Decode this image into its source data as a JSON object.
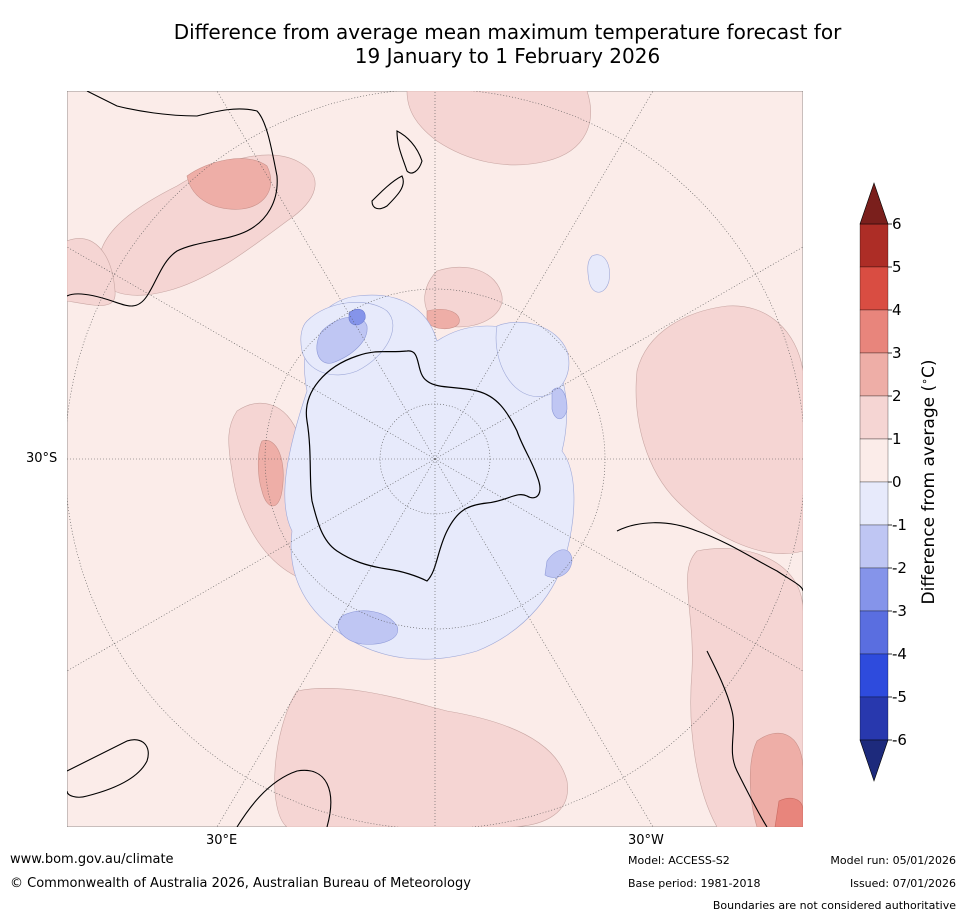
{
  "title": {
    "line1": "Difference from average mean maximum temperature forecast for",
    "line2": "19 January to 1 February 2026"
  },
  "axis_labels": {
    "lat": "30°S",
    "lon_east": "30°E",
    "lon_west": "30°W"
  },
  "colorbar": {
    "label": "Difference from average (°C)",
    "ticks": [
      "6",
      "5",
      "4",
      "3",
      "2",
      "1",
      "0",
      "-1",
      "-2",
      "-3",
      "-4",
      "-5",
      "-6"
    ],
    "bands": [
      {
        "from": 5,
        "to": 6,
        "color": "#ad2d26"
      },
      {
        "from": 4,
        "to": 5,
        "color": "#d94d42"
      },
      {
        "from": 3,
        "to": 4,
        "color": "#e8857c"
      },
      {
        "from": 2,
        "to": 3,
        "color": "#eeaea7"
      },
      {
        "from": 1,
        "to": 2,
        "color": "#f5d5d3"
      },
      {
        "from": 0,
        "to": 1,
        "color": "#fbece9"
      },
      {
        "from": -1,
        "to": 0,
        "color": "#e7eafb"
      },
      {
        "from": -2,
        "to": -1,
        "color": "#bfc6f3"
      },
      {
        "from": -3,
        "to": -2,
        "color": "#8594ea"
      },
      {
        "from": -4,
        "to": -3,
        "color": "#5a6ee0"
      },
      {
        "from": -5,
        "to": -4,
        "color": "#2e4bdd"
      },
      {
        "from": -6,
        "to": -5,
        "color": "#2838ae"
      }
    ],
    "top_arrow_color": "#7a1f1c",
    "bottom_arrow_color": "#1d2a7c"
  },
  "map_colors": {
    "base": "#fbece9",
    "warm1": "#f5d5d3",
    "warm2": "#eeaea7",
    "warm3": "#e8857c",
    "cool1": "#e7eafb",
    "cool2": "#bfc6f3",
    "cool3": "#8594ea"
  },
  "footer": {
    "website": "www.bom.gov.au/climate",
    "copyright": "© Commonwealth of Australia 2026, Australian Bureau of Meteorology",
    "model": "Model: ACCESS-S2",
    "base_period": "Base period: 1981-2018",
    "model_run": "Model run: 05/01/2026",
    "issued": "Issued: 07/01/2026",
    "disclaimer": "Boundaries are not considered authoritative"
  }
}
